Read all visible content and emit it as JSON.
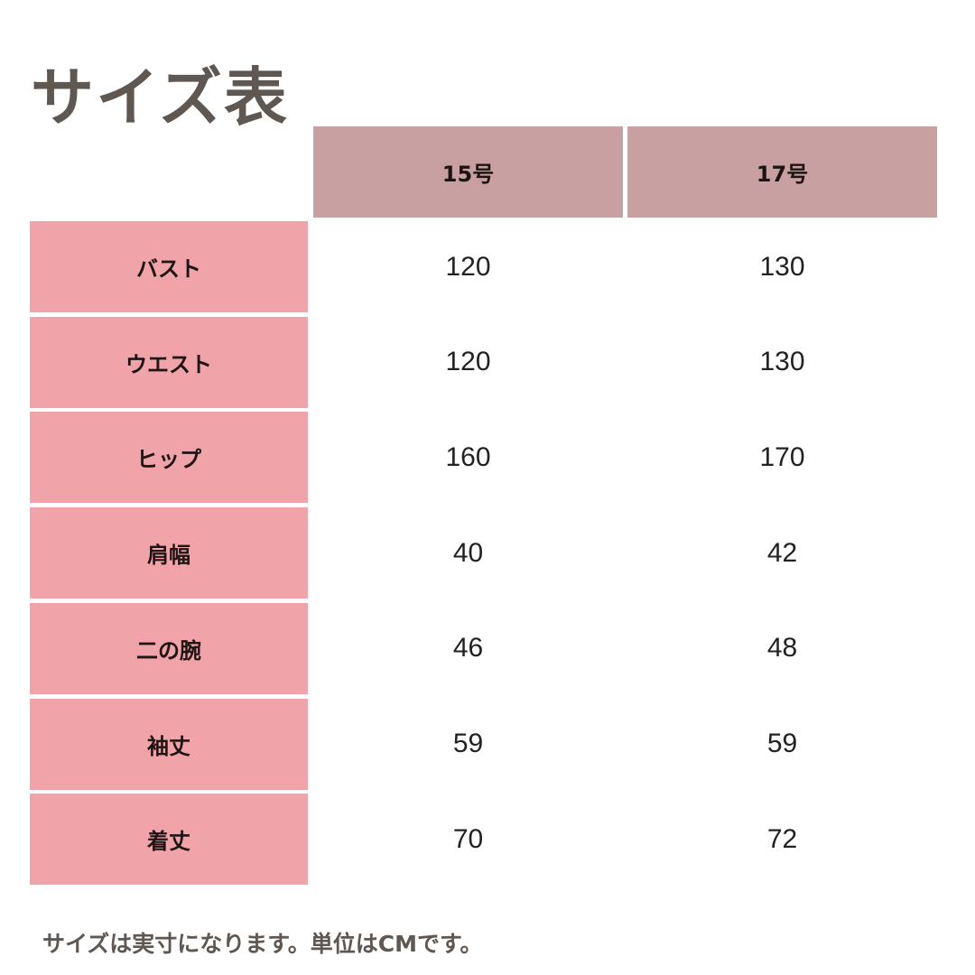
{
  "title": "サイズ表",
  "columns": [
    "15号",
    "17号"
  ],
  "rows": [
    {
      "label": "バスト",
      "values": [
        "120",
        "130"
      ]
    },
    {
      "label": "ウエスト",
      "values": [
        "120",
        "130"
      ]
    },
    {
      "label": "ヒップ",
      "values": [
        "160",
        "170"
      ]
    },
    {
      "label": "肩幅",
      "values": [
        "40",
        "42"
      ]
    },
    {
      "label": "二の腕",
      "values": [
        "46",
        "48"
      ]
    },
    {
      "label": "袖丈",
      "values": [
        "59",
        "59"
      ]
    },
    {
      "label": "着丈",
      "values": [
        "70",
        "72"
      ]
    }
  ],
  "footer": "サイズは実寸になります。単位はCMです。",
  "colors": {
    "header_bg": "#c9a0a2",
    "label_bg": "#f0a3a8",
    "title_text": "#5f5751"
  }
}
